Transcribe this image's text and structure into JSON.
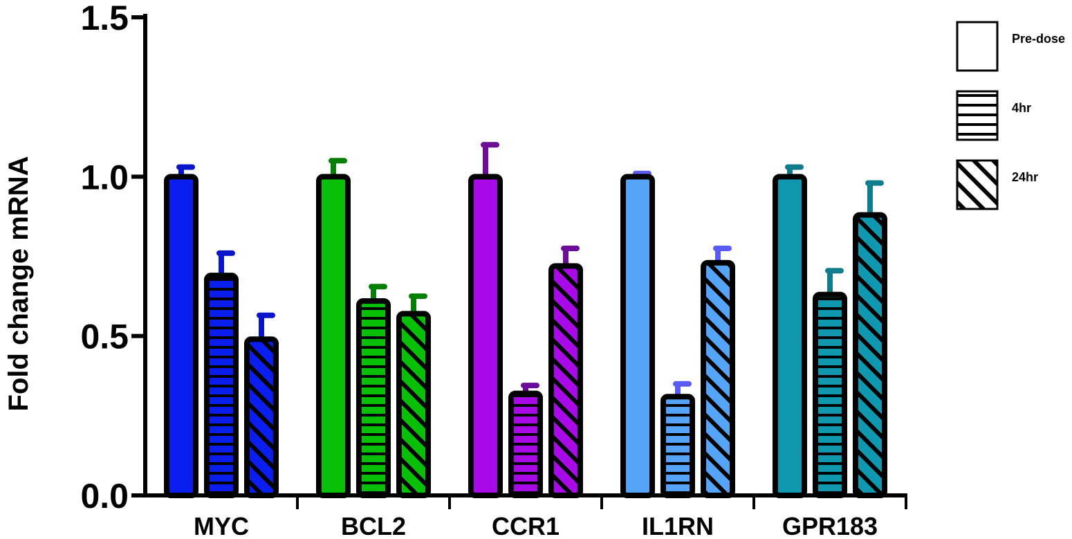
{
  "chart_data": {
    "type": "bar",
    "title": "",
    "xlabel": "",
    "ylabel": "Fold change mRNA",
    "ylim": [
      0,
      1.5
    ],
    "yticks": [
      "0.0",
      "0.5",
      "1.0",
      "1.5"
    ],
    "grid": false,
    "legend_position": "right",
    "categories": [
      "MYC",
      "BCL2",
      "CCR1",
      "IL1RN",
      "GPR183"
    ],
    "category_colors": [
      "#0a1ef0",
      "#08c008",
      "#a80ae8",
      "#56a4f8",
      "#1098b0"
    ],
    "error_colors": [
      "#0a14c8",
      "#057f05",
      "#6c0d9a",
      "#5a5af4",
      "#107c8c"
    ],
    "series": [
      {
        "name": "Pre-dose",
        "pattern": "solid",
        "values": [
          1.0,
          1.0,
          1.0,
          1.0,
          1.0
        ],
        "errors": [
          0.03,
          0.05,
          0.1,
          0.01,
          0.03
        ]
      },
      {
        "name": "4hr",
        "pattern": "horizontal",
        "values": [
          0.69,
          0.61,
          0.32,
          0.31,
          0.63
        ],
        "errors": [
          0.07,
          0.045,
          0.025,
          0.04,
          0.075
        ]
      },
      {
        "name": "24hr",
        "pattern": "diagonal",
        "values": [
          0.49,
          0.57,
          0.72,
          0.73,
          0.88
        ],
        "errors": [
          0.075,
          0.055,
          0.055,
          0.045,
          0.1
        ]
      }
    ]
  }
}
